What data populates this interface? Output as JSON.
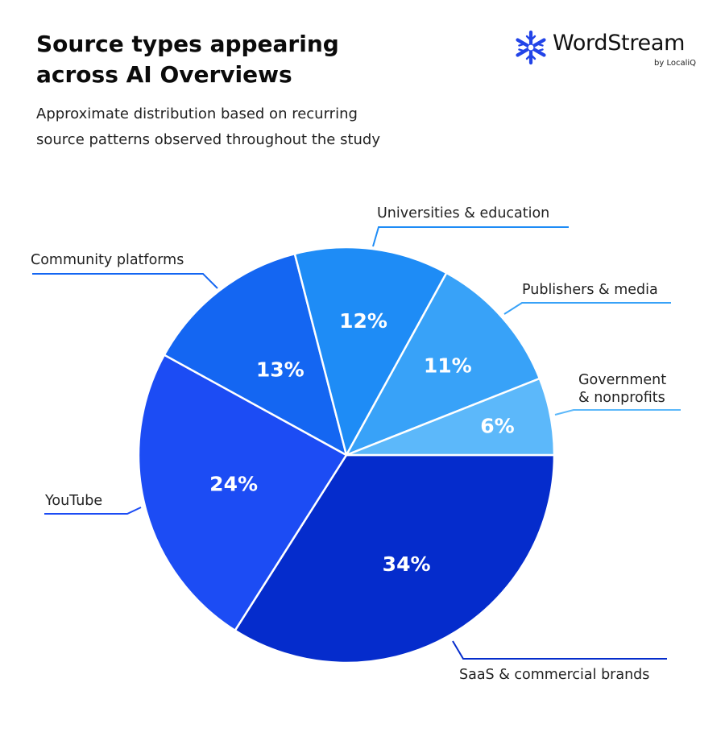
{
  "header": {
    "title_line1": "Source types appearing",
    "title_line2": "across AI Overviews",
    "subtitle_line1": "Approximate distribution based on recurring",
    "subtitle_line2": "source patterns observed throughout the study"
  },
  "logo": {
    "name": "WordStream",
    "byline": "by LocaliQ",
    "icon": "snowflake-star-icon",
    "color": "#2244e8"
  },
  "chart_data": {
    "type": "pie",
    "title": "Source types appearing across AI Overviews",
    "subtitle": "Approximate distribution based on recurring source patterns observed throughout the study",
    "slices": [
      {
        "label": "SaaS & commercial brands",
        "value": 34,
        "value_label": "34%",
        "color": "#052ccc"
      },
      {
        "label": "YouTube",
        "value": 24,
        "value_label": "24%",
        "color": "#1c4cf4"
      },
      {
        "label": "Community platforms",
        "value": 13,
        "value_label": "13%",
        "color": "#1466f2"
      },
      {
        "label": "Universities & education",
        "value": 12,
        "value_label": "12%",
        "color": "#1e8cf6"
      },
      {
        "label": "Publishers & media",
        "value": 11,
        "value_label": "11%",
        "color": "#38a2f8"
      },
      {
        "label": "Government & nonprofits",
        "label_lines": [
          "Government",
          "& nonprofits"
        ],
        "value": 6,
        "value_label": "6%",
        "color": "#5cb8fa"
      }
    ]
  }
}
